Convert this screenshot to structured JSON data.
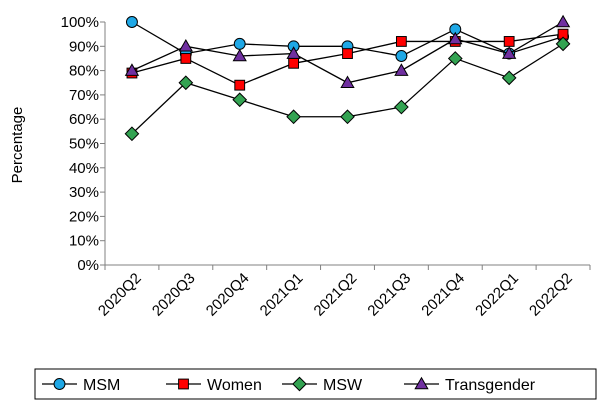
{
  "chart_data": {
    "type": "line",
    "xlabel": "",
    "ylabel": "Percentage",
    "ylim": [
      0,
      100
    ],
    "y_ticks": [
      "0%",
      "10%",
      "20%",
      "30%",
      "40%",
      "50%",
      "60%",
      "70%",
      "80%",
      "90%",
      "100%"
    ],
    "categories": [
      "2020Q2",
      "2020Q3",
      "2020Q4",
      "2021Q1",
      "2021Q2",
      "2021Q3",
      "2021Q4",
      "2022Q1",
      "2022Q2"
    ],
    "grid": false,
    "legend_position": "bottom",
    "series": [
      {
        "name": "MSM",
        "marker": "circle",
        "color": "#1FA8E6",
        "values": [
          100,
          87,
          91,
          90,
          90,
          86,
          97,
          87,
          94
        ]
      },
      {
        "name": "Women",
        "marker": "square",
        "color": "#FF0000",
        "values": [
          79,
          85,
          74,
          83,
          87,
          92,
          92,
          92,
          95
        ]
      },
      {
        "name": "MSW",
        "marker": "diamond",
        "color": "#33A352",
        "values": [
          54,
          75,
          68,
          61,
          61,
          65,
          85,
          77,
          91
        ]
      },
      {
        "name": "Transgender",
        "marker": "triangle",
        "color": "#7030A0",
        "values": [
          80,
          90,
          86,
          87,
          75,
          80,
          93,
          87,
          100
        ]
      }
    ]
  }
}
